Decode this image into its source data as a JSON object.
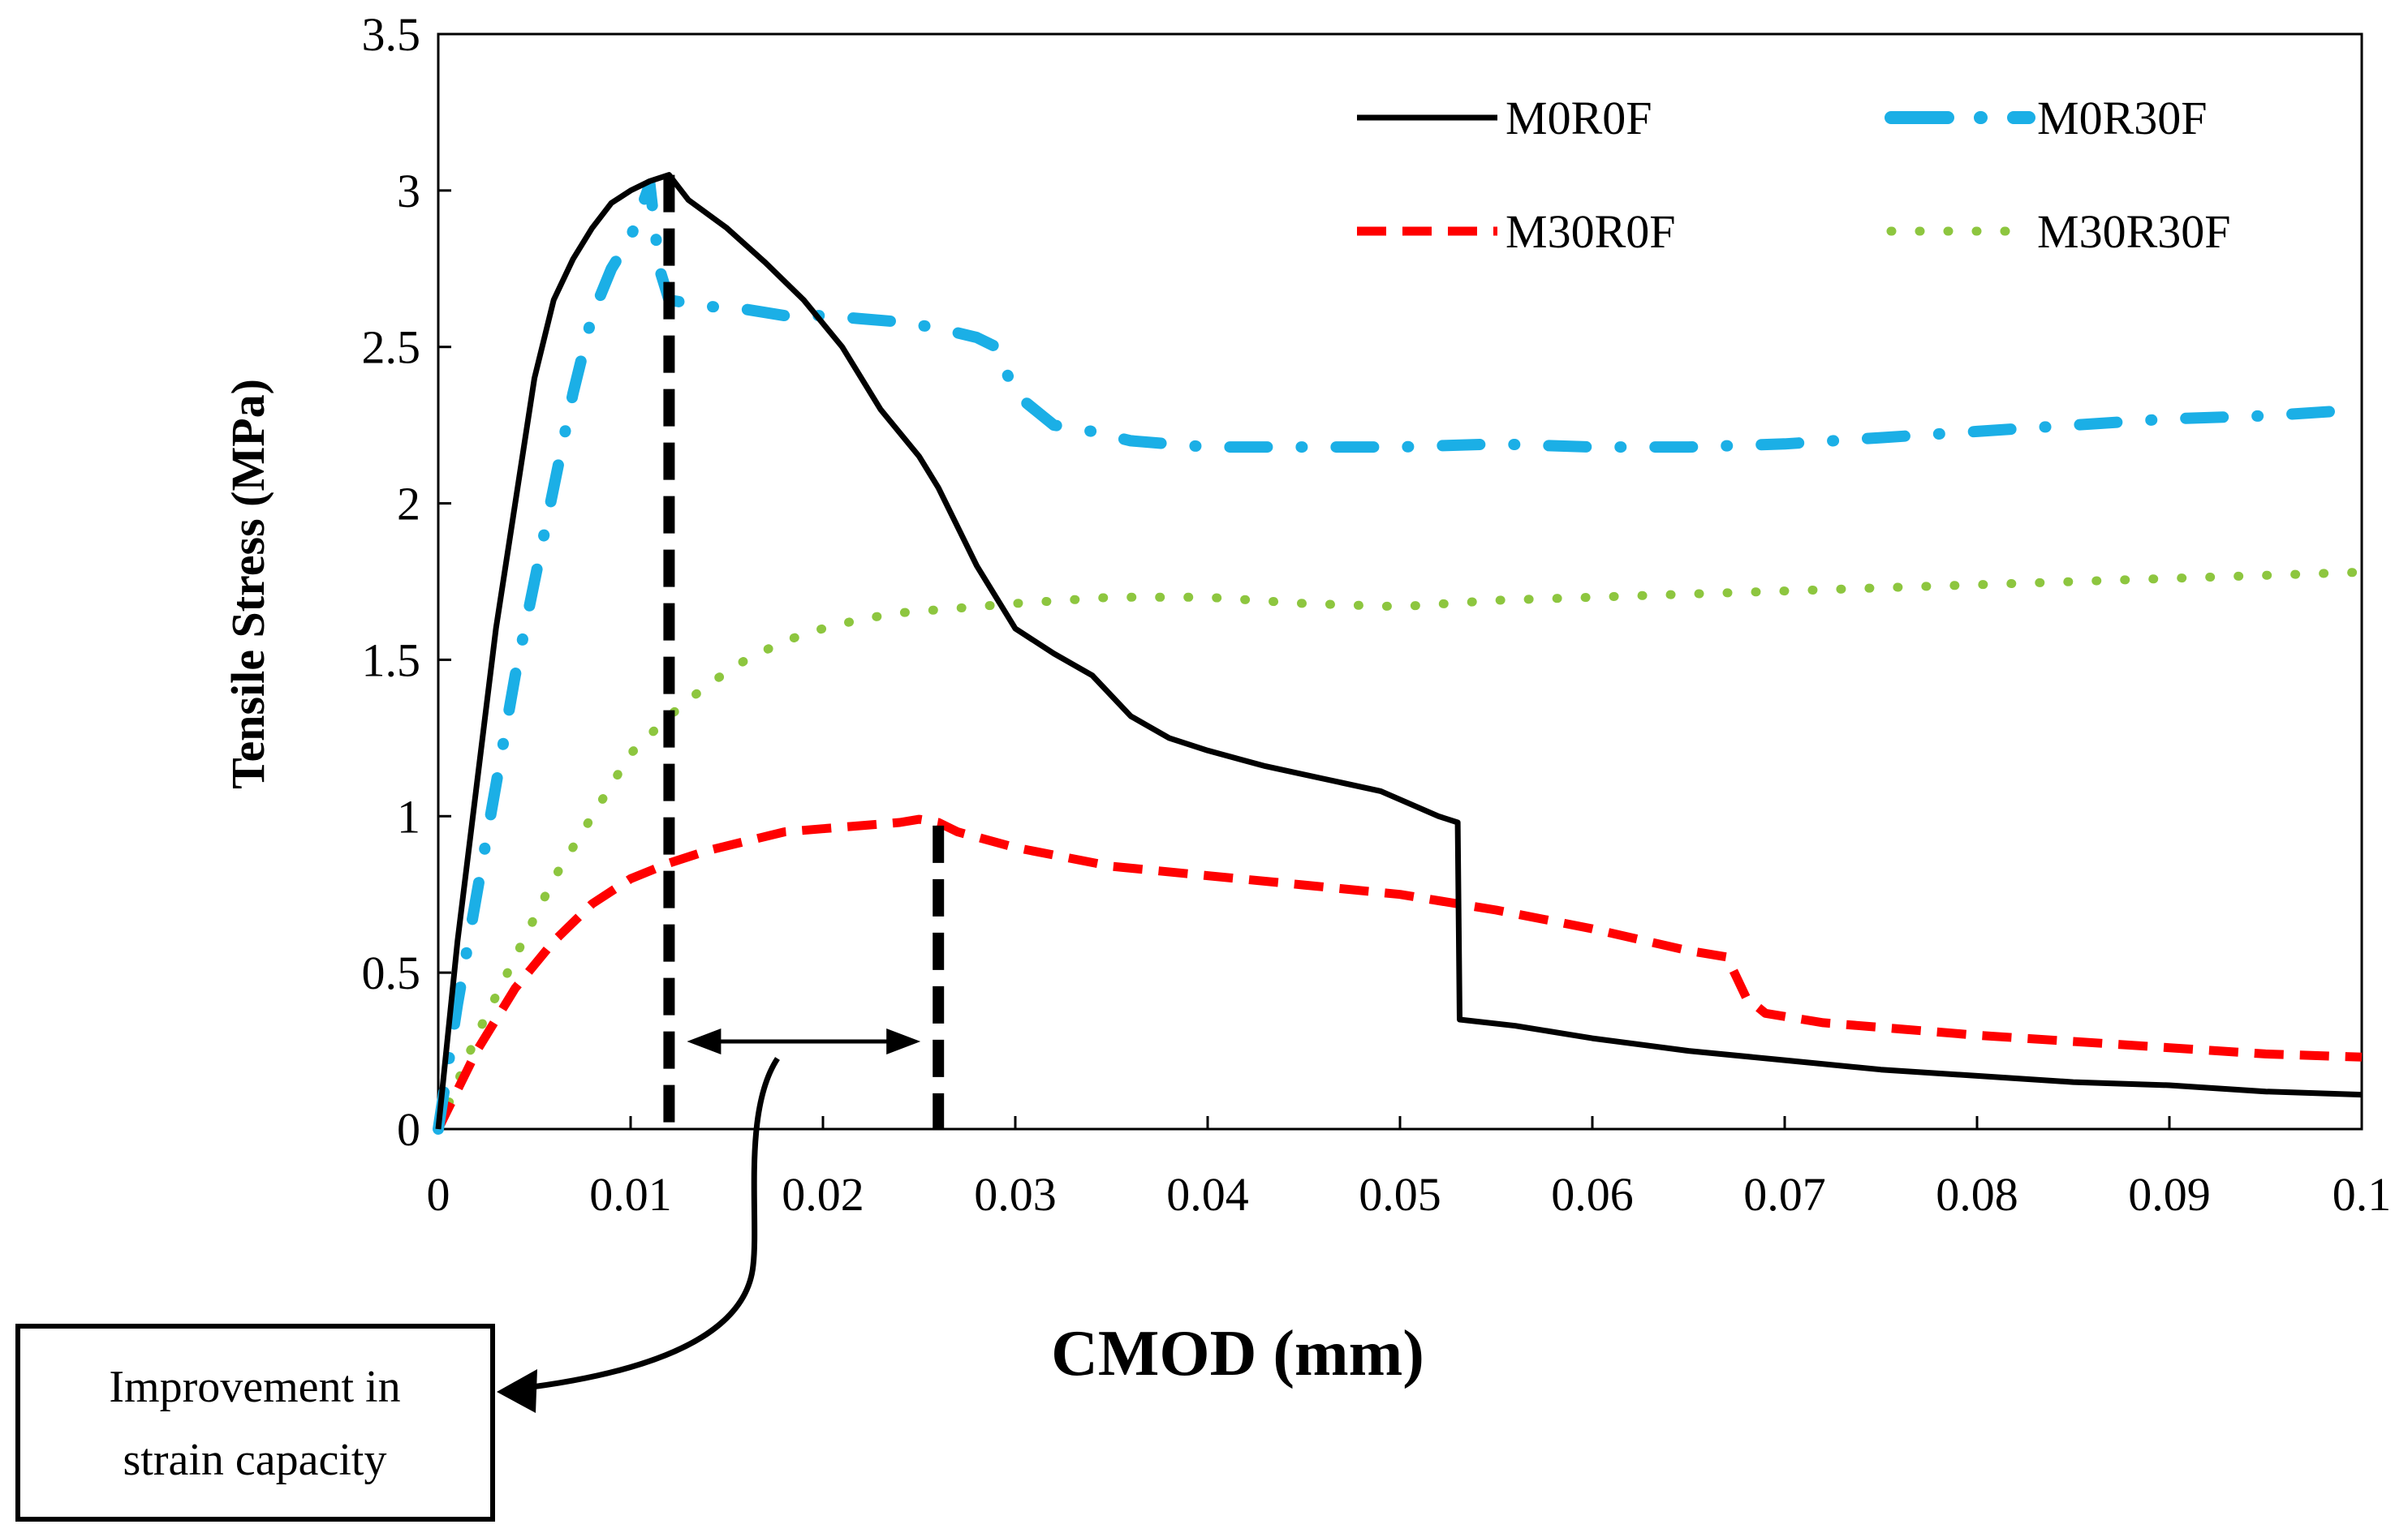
{
  "chart_data": {
    "type": "line",
    "title": "",
    "xlabel": "CMOD (mm)",
    "ylabel": "Tensile Stress (MPa)",
    "xlim": [
      0,
      0.1
    ],
    "ylim": [
      0,
      3.5
    ],
    "xticks": [
      0,
      0.01,
      0.02,
      0.03,
      0.04,
      0.05,
      0.06,
      0.07,
      0.08,
      0.09,
      0.1
    ],
    "xtick_labels": [
      "0",
      "0.01",
      "0.02",
      "0.03",
      "0.04",
      "0.05",
      "0.06",
      "0.07",
      "0.08",
      "0.09",
      "0.1"
    ],
    "yticks": [
      0,
      0.5,
      1,
      1.5,
      2,
      2.5,
      3,
      3.5
    ],
    "ytick_labels": [
      "0",
      "0.5",
      "1",
      "1.5",
      "2",
      "2.5",
      "3",
      "3.5"
    ],
    "grid": false,
    "legend_position": "top-right",
    "series": [
      {
        "name": "M0R0F",
        "color": "#000000",
        "style": "solid",
        "x": [
          0,
          0.001,
          0.002,
          0.003,
          0.004,
          0.005,
          0.006,
          0.007,
          0.008,
          0.009,
          0.01,
          0.011,
          0.012,
          0.013,
          0.015,
          0.017,
          0.019,
          0.021,
          0.023,
          0.025,
          0.026,
          0.028,
          0.03,
          0.032,
          0.034,
          0.036,
          0.038,
          0.04,
          0.043,
          0.046,
          0.049,
          0.052,
          0.053,
          0.0531,
          0.056,
          0.06,
          0.065,
          0.07,
          0.075,
          0.08,
          0.085,
          0.09,
          0.095,
          0.1
        ],
        "y": [
          0,
          0.6,
          1.1,
          1.6,
          2.0,
          2.4,
          2.65,
          2.78,
          2.88,
          2.96,
          3.0,
          3.03,
          3.05,
          2.97,
          2.88,
          2.77,
          2.65,
          2.5,
          2.3,
          2.15,
          2.05,
          1.8,
          1.6,
          1.52,
          1.45,
          1.32,
          1.25,
          1.21,
          1.16,
          1.12,
          1.08,
          1.0,
          0.98,
          0.35,
          0.33,
          0.29,
          0.25,
          0.22,
          0.19,
          0.17,
          0.15,
          0.14,
          0.12,
          0.11
        ]
      },
      {
        "name": "M0R30F",
        "color": "#1BAFE6",
        "style": "dash-dot",
        "x": [
          0,
          0.001,
          0.002,
          0.003,
          0.004,
          0.005,
          0.006,
          0.007,
          0.008,
          0.009,
          0.01,
          0.011,
          0.0115,
          0.012,
          0.014,
          0.016,
          0.018,
          0.02,
          0.022,
          0.024,
          0.026,
          0.028,
          0.029,
          0.03,
          0.032,
          0.034,
          0.036,
          0.038,
          0.04,
          0.045,
          0.05,
          0.055,
          0.06,
          0.065,
          0.07,
          0.075,
          0.08,
          0.085,
          0.09,
          0.095,
          0.1
        ],
        "y": [
          0,
          0.4,
          0.75,
          1.1,
          1.45,
          1.75,
          2.05,
          2.35,
          2.6,
          2.75,
          2.85,
          3.02,
          2.75,
          2.65,
          2.63,
          2.62,
          2.6,
          2.6,
          2.59,
          2.58,
          2.56,
          2.53,
          2.5,
          2.35,
          2.25,
          2.23,
          2.2,
          2.19,
          2.18,
          2.18,
          2.18,
          2.19,
          2.18,
          2.18,
          2.19,
          2.21,
          2.23,
          2.25,
          2.27,
          2.28,
          2.3
        ]
      },
      {
        "name": "M30R0F",
        "color": "#FF0000",
        "style": "dashed",
        "x": [
          0,
          0.002,
          0.004,
          0.006,
          0.008,
          0.01,
          0.012,
          0.014,
          0.016,
          0.018,
          0.02,
          0.022,
          0.024,
          0.025,
          0.026,
          0.027,
          0.03,
          0.035,
          0.04,
          0.045,
          0.05,
          0.055,
          0.06,
          0.065,
          0.067,
          0.068,
          0.069,
          0.072,
          0.076,
          0.08,
          0.085,
          0.09,
          0.095,
          0.1
        ],
        "y": [
          0,
          0.25,
          0.45,
          0.6,
          0.72,
          0.8,
          0.85,
          0.89,
          0.92,
          0.95,
          0.96,
          0.97,
          0.98,
          0.99,
          0.98,
          0.95,
          0.9,
          0.84,
          0.81,
          0.78,
          0.75,
          0.7,
          0.64,
          0.57,
          0.55,
          0.42,
          0.37,
          0.34,
          0.32,
          0.3,
          0.28,
          0.26,
          0.24,
          0.23
        ]
      },
      {
        "name": "M30R30F",
        "color": "#8DC63F",
        "style": "dotted",
        "x": [
          0,
          0.002,
          0.004,
          0.006,
          0.008,
          0.01,
          0.012,
          0.014,
          0.016,
          0.018,
          0.02,
          0.022,
          0.024,
          0.026,
          0.028,
          0.03,
          0.035,
          0.04,
          0.045,
          0.05,
          0.055,
          0.06,
          0.065,
          0.07,
          0.075,
          0.08,
          0.085,
          0.09,
          0.095,
          0.1
        ],
        "y": [
          0,
          0.3,
          0.55,
          0.8,
          1.0,
          1.2,
          1.32,
          1.42,
          1.5,
          1.56,
          1.6,
          1.63,
          1.65,
          1.66,
          1.67,
          1.68,
          1.7,
          1.7,
          1.68,
          1.67,
          1.69,
          1.7,
          1.71,
          1.72,
          1.73,
          1.74,
          1.75,
          1.76,
          1.77,
          1.78
        ]
      }
    ],
    "annotations": {
      "vline_1_x": 0.012,
      "vline_1_top": 3.05,
      "vline_2_x": 0.026,
      "vline_2_top": 0.97,
      "arrow_y": 0.28,
      "arrow_x_from": 0.012,
      "arrow_x_to": 0.026,
      "note_line_1": "Improvement  in",
      "note_line_2": "strain  capacity"
    }
  }
}
